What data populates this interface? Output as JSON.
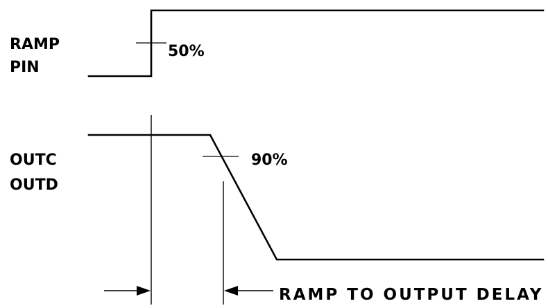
{
  "signals": {
    "ramp_label_1": "RAMP",
    "ramp_label_2": "PIN",
    "out_label_1": "OUTC",
    "out_label_2": "OUTD"
  },
  "thresholds": {
    "ramp_threshold": "50%",
    "out_threshold": "90%"
  },
  "measurement": {
    "delay_label": "RAMP TO OUTPUT DELAY"
  }
}
